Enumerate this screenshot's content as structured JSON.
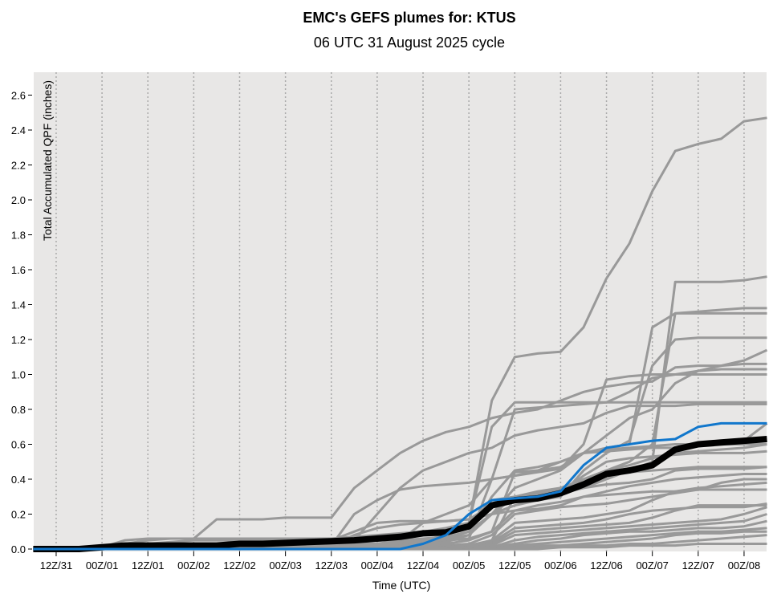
{
  "chart_data": {
    "type": "line",
    "title": "EMC's GEFS plumes for: KTUS",
    "subtitle": "06 UTC 31 August 2025 cycle",
    "xlabel": "Time (UTC)",
    "ylabel": "Total Accumulated QPF (inches)",
    "ylim": [
      0,
      2.72
    ],
    "yticks": [
      "0.0",
      "0.2",
      "0.4",
      "0.6",
      "0.8",
      "1.0",
      "1.2",
      "1.4",
      "1.6",
      "1.8",
      "2.0",
      "2.2",
      "2.4",
      "2.6"
    ],
    "xticks": [
      "12Z/31",
      "00Z/01",
      "12Z/01",
      "00Z/02",
      "12Z/02",
      "00Z/03",
      "12Z/03",
      "00Z/04",
      "12Z/04",
      "00Z/05",
      "12Z/05",
      "00Z/06",
      "12Z/06",
      "00Z/07",
      "12Z/07",
      "00Z/08"
    ],
    "forecast_hours_step": 6,
    "colors": {
      "member": "#999999",
      "mean": "#000000",
      "control": "#1177cc",
      "background": "#e8e7e6"
    },
    "members": [
      [
        0,
        0,
        0,
        0.01,
        0.05,
        0.06,
        0.06,
        0.06,
        0.06,
        0.06,
        0.06,
        0.06,
        0.06,
        0.06,
        0.06,
        0.07,
        0.08,
        0.09,
        0.1,
        0.15,
        0.85,
        1.1,
        1.12,
        1.13,
        1.27,
        1.55,
        1.75,
        2.05,
        2.28,
        2.32,
        2.35,
        2.45,
        2.47
      ],
      [
        0,
        0,
        0,
        0,
        0.03,
        0.05,
        0.06,
        0.06,
        0.17,
        0.17,
        0.17,
        0.18,
        0.18,
        0.18,
        0.35,
        0.45,
        0.55,
        0.62,
        0.67,
        0.7,
        0.75,
        0.78,
        0.8,
        0.85,
        0.9,
        0.93,
        0.95,
        0.96,
        1.04,
        1.05,
        1.05,
        1.06,
        1.06
      ],
      [
        0,
        0,
        0,
        0,
        0.02,
        0.03,
        0.04,
        0.05,
        0.05,
        0.05,
        0.05,
        0.05,
        0.06,
        0.06,
        0.07,
        0.08,
        0.09,
        0.1,
        0.12,
        0.15,
        0.25,
        0.3,
        0.31,
        0.32,
        0.35,
        0.4,
        0.45,
        0.5,
        1.53,
        1.53,
        1.53,
        1.54,
        1.56
      ],
      [
        0,
        0,
        0,
        0,
        0.01,
        0.02,
        0.02,
        0.02,
        0.02,
        0.02,
        0.03,
        0.03,
        0.03,
        0.04,
        0.04,
        0.05,
        0.05,
        0.06,
        0.07,
        0.1,
        0.2,
        0.3,
        0.32,
        0.34,
        0.4,
        0.45,
        0.5,
        0.6,
        1.35,
        1.35,
        1.35,
        1.35,
        1.35
      ],
      [
        0,
        0,
        0,
        0,
        0.01,
        0.01,
        0.01,
        0.01,
        0.01,
        0.01,
        0.01,
        0.01,
        0.01,
        0.02,
        0.02,
        0.03,
        0.04,
        0.05,
        0.06,
        0.08,
        0.3,
        0.45,
        0.47,
        0.5,
        0.55,
        0.58,
        0.6,
        1.27,
        1.35,
        1.36,
        1.37,
        1.38,
        1.38
      ],
      [
        0,
        0,
        0,
        0,
        0,
        0.01,
        0.01,
        0.01,
        0.01,
        0.01,
        0.01,
        0.01,
        0.01,
        0.01,
        0.02,
        0.03,
        0.04,
        0.05,
        0.06,
        0.1,
        0.2,
        0.25,
        0.28,
        0.3,
        0.45,
        0.55,
        0.62,
        1.05,
        1.2,
        1.21,
        1.21,
        1.21,
        1.21
      ],
      [
        0,
        0,
        0,
        0,
        0.01,
        0.01,
        0.01,
        0.02,
        0.02,
        0.02,
        0.02,
        0.02,
        0.02,
        0.02,
        0.03,
        0.03,
        0.04,
        0.05,
        0.06,
        0.1,
        0.2,
        0.35,
        0.4,
        0.45,
        0.55,
        0.65,
        0.75,
        0.8,
        0.95,
        1.02,
        1.05,
        1.08,
        1.14
      ],
      [
        0,
        0,
        0,
        0,
        0.01,
        0.01,
        0.01,
        0.01,
        0.02,
        0.02,
        0.02,
        0.02,
        0.03,
        0.03,
        0.04,
        0.05,
        0.06,
        0.08,
        0.1,
        0.15,
        0.7,
        0.84,
        0.84,
        0.84,
        0.84,
        0.84,
        0.84,
        0.84,
        0.84,
        0.84,
        0.84,
        0.84,
        0.84
      ],
      [
        0,
        0,
        0,
        0,
        0,
        0,
        0,
        0,
        0.01,
        0.01,
        0.01,
        0.01,
        0.01,
        0.01,
        0.02,
        0.02,
        0.03,
        0.04,
        0.05,
        0.06,
        0.4,
        0.8,
        0.81,
        0.82,
        0.83,
        0.84,
        0.9,
        0.98,
        1.0,
        1.02,
        1.03,
        1.03,
        1.03
      ],
      [
        0,
        0,
        0,
        0,
        0,
        0.01,
        0.01,
        0.01,
        0.01,
        0.01,
        0.01,
        0.02,
        0.02,
        0.03,
        0.05,
        0.2,
        0.35,
        0.45,
        0.5,
        0.55,
        0.58,
        0.65,
        0.68,
        0.7,
        0.72,
        0.78,
        0.82,
        0.82,
        0.82,
        0.83,
        0.83,
        0.83,
        0.83
      ],
      [
        0,
        0,
        0,
        0,
        0,
        0,
        0,
        0,
        0,
        0,
        0,
        0,
        0.01,
        0.01,
        0.02,
        0.03,
        0.05,
        0.15,
        0.2,
        0.25,
        0.4,
        0.42,
        0.44,
        0.46,
        0.6,
        0.97,
        0.99,
        1.0,
        1.0,
        1.0,
        1.0,
        1.0,
        1.0
      ],
      [
        0,
        0,
        0,
        0,
        0,
        0,
        0,
        0,
        0,
        0,
        0,
        0,
        0.01,
        0.02,
        0.2,
        0.28,
        0.34,
        0.36,
        0.37,
        0.38,
        0.4,
        0.42,
        0.45,
        0.5,
        0.55,
        0.57,
        0.58,
        0.59,
        0.6,
        0.6,
        0.6,
        0.6,
        0.6
      ],
      [
        0,
        0,
        0,
        0,
        0,
        0,
        0,
        0,
        0,
        0,
        0,
        0,
        0,
        0.01,
        0.01,
        0.02,
        0.03,
        0.04,
        0.05,
        0.06,
        0.1,
        0.44,
        0.45,
        0.47,
        0.55,
        0.56,
        0.57,
        0.58,
        0.58,
        0.6,
        0.6,
        0.62,
        0.72
      ],
      [
        0,
        0,
        0,
        0,
        0,
        0,
        0,
        0,
        0,
        0,
        0,
        0,
        0,
        0,
        0.01,
        0.02,
        0.03,
        0.05,
        0.08,
        0.15,
        0.28,
        0.3,
        0.31,
        0.33,
        0.4,
        0.45,
        0.48,
        0.52,
        0.55,
        0.56,
        0.57,
        0.58,
        0.6
      ],
      [
        0,
        0,
        0,
        0,
        0,
        0,
        0,
        0,
        0,
        0,
        0,
        0,
        0,
        0,
        0,
        0.01,
        0.02,
        0.03,
        0.04,
        0.08,
        0.2,
        0.3,
        0.33,
        0.35,
        0.4,
        0.42,
        0.44,
        0.45,
        0.46,
        0.47,
        0.47,
        0.47,
        0.47
      ],
      [
        0,
        0,
        0,
        0,
        0,
        0,
        0,
        0,
        0,
        0,
        0,
        0,
        0,
        0,
        0,
        0,
        0.01,
        0.02,
        0.03,
        0.05,
        0.1,
        0.22,
        0.25,
        0.27,
        0.3,
        0.33,
        0.36,
        0.38,
        0.4,
        0.41,
        0.42,
        0.43,
        0.43
      ],
      [
        0,
        0,
        0,
        0,
        0,
        0,
        0,
        0,
        0,
        0,
        0,
        0,
        0,
        0,
        0,
        0,
        0,
        0.01,
        0.02,
        0.03,
        0.08,
        0.2,
        0.22,
        0.24,
        0.25,
        0.26,
        0.28,
        0.3,
        0.32,
        0.34,
        0.38,
        0.4,
        0.4
      ],
      [
        0,
        0,
        0,
        0,
        0,
        0,
        0,
        0,
        0,
        0,
        0,
        0,
        0,
        0,
        0,
        0,
        0,
        0.01,
        0.01,
        0.02,
        0.05,
        0.15,
        0.16,
        0.17,
        0.18,
        0.2,
        0.22,
        0.28,
        0.33,
        0.35,
        0.36,
        0.37,
        0.38
      ],
      [
        0,
        0,
        0,
        0,
        0,
        0,
        0,
        0,
        0,
        0,
        0,
        0,
        0,
        0,
        0,
        0,
        0,
        0,
        0.01,
        0.02,
        0.04,
        0.12,
        0.13,
        0.14,
        0.15,
        0.17,
        0.2,
        0.22,
        0.23,
        0.24,
        0.24,
        0.24,
        0.26
      ],
      [
        0,
        0,
        0,
        0,
        0,
        0,
        0,
        0,
        0,
        0,
        0,
        0,
        0,
        0,
        0,
        0,
        0,
        0,
        0,
        0.01,
        0.03,
        0.1,
        0.11,
        0.12,
        0.13,
        0.14,
        0.15,
        0.18,
        0.22,
        0.25,
        0.25,
        0.25,
        0.25
      ],
      [
        0,
        0,
        0,
        0,
        0,
        0,
        0,
        0,
        0,
        0,
        0,
        0,
        0,
        0,
        0,
        0,
        0,
        0,
        0,
        0.01,
        0.02,
        0.08,
        0.09,
        0.1,
        0.11,
        0.12,
        0.13,
        0.14,
        0.15,
        0.16,
        0.17,
        0.2,
        0.24
      ],
      [
        0,
        0,
        0,
        0,
        0,
        0,
        0,
        0,
        0,
        0,
        0,
        0,
        0,
        0,
        0,
        0,
        0,
        0,
        0,
        0,
        0.01,
        0.05,
        0.07,
        0.08,
        0.09,
        0.1,
        0.11,
        0.12,
        0.13,
        0.14,
        0.15,
        0.16,
        0.2
      ],
      [
        0,
        0,
        0,
        0,
        0,
        0,
        0,
        0,
        0,
        0,
        0,
        0,
        0,
        0,
        0,
        0,
        0,
        0,
        0,
        0,
        0.01,
        0.03,
        0.05,
        0.06,
        0.08,
        0.09,
        0.1,
        0.1,
        0.11,
        0.12,
        0.12,
        0.13,
        0.16
      ],
      [
        0,
        0,
        0,
        0,
        0,
        0,
        0,
        0,
        0,
        0,
        0,
        0,
        0,
        0,
        0,
        0,
        0,
        0,
        0,
        0,
        0,
        0.02,
        0.03,
        0.04,
        0.05,
        0.06,
        0.07,
        0.08,
        0.09,
        0.1,
        0.1,
        0.11,
        0.12
      ],
      [
        0,
        0,
        0,
        0,
        0,
        0,
        0,
        0,
        0,
        0,
        0,
        0,
        0,
        0,
        0,
        0,
        0,
        0,
        0,
        0,
        0,
        0.01,
        0.02,
        0.02,
        0.03,
        0.04,
        0.05,
        0.06,
        0.08,
        0.09,
        0.09,
        0.1,
        0.1
      ],
      [
        0,
        0,
        0,
        0,
        0,
        0,
        0,
        0,
        0,
        0,
        0,
        0,
        0,
        0,
        0,
        0,
        0,
        0,
        0,
        0,
        0,
        0,
        0.01,
        0.01,
        0.02,
        0.02,
        0.03,
        0.03,
        0.04,
        0.05,
        0.06,
        0.07,
        0.08
      ],
      [
        0,
        0,
        0,
        0,
        0,
        0,
        0,
        0,
        0,
        0,
        0,
        0,
        0,
        0,
        0,
        0,
        0,
        0,
        0,
        0,
        0,
        0,
        0,
        0.01,
        0.01,
        0.01,
        0.02,
        0.02,
        0.02,
        0.03,
        0.03,
        0.03,
        0.03
      ],
      [
        0,
        0,
        0,
        0,
        0,
        0,
        0,
        0,
        0,
        0,
        0,
        0,
        0,
        0,
        0,
        0,
        0,
        0,
        0,
        0.01,
        0.05,
        0.3,
        0.31,
        0.32,
        0.35,
        0.37,
        0.38,
        0.4,
        0.45,
        0.46,
        0.46,
        0.46,
        0.47
      ],
      [
        0,
        0,
        0,
        0.01,
        0.01,
        0.02,
        0.02,
        0.02,
        0.02,
        0.03,
        0.03,
        0.03,
        0.03,
        0.05,
        0.1,
        0.15,
        0.16,
        0.16,
        0.16,
        0.17,
        0.25,
        0.28,
        0.3,
        0.32,
        0.42,
        0.5,
        0.52,
        0.53,
        0.54,
        0.55,
        0.55,
        0.55,
        0.56
      ],
      [
        0,
        0,
        0,
        0,
        0,
        0,
        0,
        0,
        0,
        0,
        0,
        0.01,
        0.01,
        0.02,
        0.08,
        0.12,
        0.14,
        0.15,
        0.16,
        0.17,
        0.2,
        0.22,
        0.23,
        0.25,
        0.3,
        0.31,
        0.32,
        0.33,
        0.33,
        0.34,
        0.34,
        0.34,
        0.34
      ]
    ],
    "control": [
      0,
      0,
      0,
      0,
      0,
      0,
      0,
      0,
      0,
      0,
      0,
      0,
      0,
      0,
      0,
      0,
      0,
      0.03,
      0.08,
      0.2,
      0.28,
      0.29,
      0.3,
      0.33,
      0.48,
      0.58,
      0.6,
      0.62,
      0.63,
      0.7,
      0.72,
      0.72,
      0.72
    ],
    "mean": [
      0,
      0,
      0,
      0.01,
      0.02,
      0.02,
      0.02,
      0.02,
      0.02,
      0.03,
      0.03,
      0.035,
      0.04,
      0.045,
      0.05,
      0.06,
      0.07,
      0.09,
      0.095,
      0.13,
      0.25,
      0.28,
      0.29,
      0.32,
      0.37,
      0.43,
      0.45,
      0.48,
      0.57,
      0.6,
      0.61,
      0.62,
      0.63
    ]
  }
}
